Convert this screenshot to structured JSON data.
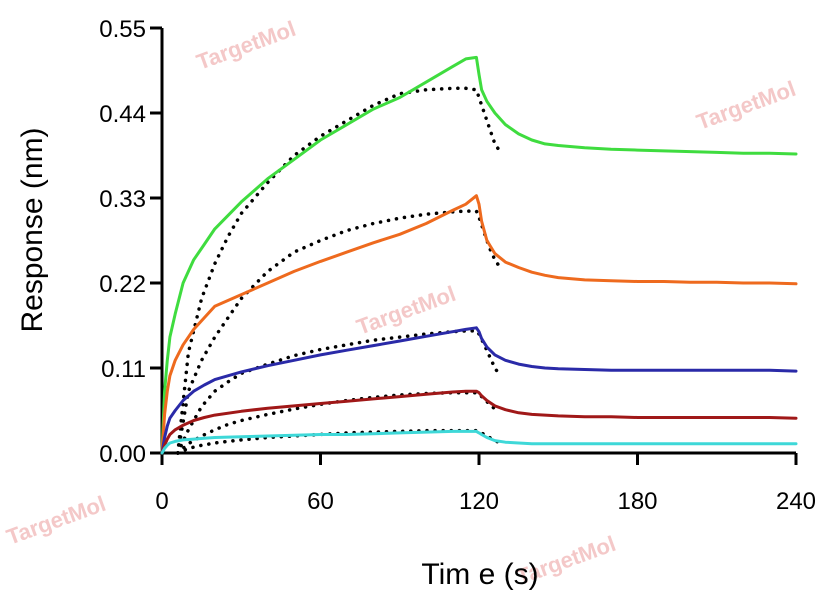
{
  "chart_data": {
    "type": "line",
    "title": "",
    "xlabel": "Tim e (s)",
    "ylabel": "Response (nm)",
    "xlim": [
      0,
      240
    ],
    "ylim": [
      0,
      0.55
    ],
    "xticks": [
      0,
      60,
      120,
      180,
      240
    ],
    "xtick_labels": [
      "0",
      "60",
      "120",
      "180",
      "240"
    ],
    "yticks": [
      0.0,
      0.11,
      0.22,
      0.33,
      0.44,
      0.55
    ],
    "ytick_labels": [
      "0.00",
      "0.11",
      "0.22",
      "0.33",
      "0.44",
      "0.55"
    ],
    "grid": false,
    "watermark_text": "TargetMol",
    "series": [
      {
        "name": "green",
        "color": "#3fdc3f",
        "x": [
          0,
          1,
          2,
          3,
          5,
          8,
          12,
          16,
          20,
          30,
          40,
          50,
          60,
          70,
          80,
          90,
          100,
          110,
          115,
          119,
          120,
          121,
          123,
          126,
          130,
          135,
          140,
          145,
          150,
          160,
          170,
          180,
          190,
          200,
          210,
          220,
          230,
          240
        ],
        "y": [
          0.0,
          0.08,
          0.12,
          0.15,
          0.18,
          0.22,
          0.25,
          0.27,
          0.29,
          0.325,
          0.355,
          0.38,
          0.405,
          0.425,
          0.445,
          0.46,
          0.48,
          0.5,
          0.51,
          0.512,
          0.49,
          0.47,
          0.455,
          0.44,
          0.425,
          0.413,
          0.405,
          0.4,
          0.398,
          0.395,
          0.393,
          0.392,
          0.391,
          0.39,
          0.389,
          0.388,
          0.388,
          0.387
        ]
      },
      {
        "name": "orange",
        "color": "#ee6a1e",
        "x": [
          0,
          1,
          2,
          3,
          5,
          8,
          12,
          16,
          20,
          30,
          40,
          50,
          60,
          70,
          80,
          90,
          100,
          110,
          115,
          119,
          120,
          121,
          123,
          126,
          130,
          135,
          140,
          145,
          150,
          160,
          170,
          180,
          190,
          200,
          210,
          220,
          230,
          240
        ],
        "y": [
          0.0,
          0.05,
          0.08,
          0.1,
          0.12,
          0.14,
          0.16,
          0.175,
          0.19,
          0.205,
          0.22,
          0.235,
          0.248,
          0.26,
          0.272,
          0.283,
          0.297,
          0.314,
          0.322,
          0.333,
          0.322,
          0.3,
          0.275,
          0.258,
          0.247,
          0.24,
          0.234,
          0.23,
          0.227,
          0.224,
          0.223,
          0.222,
          0.222,
          0.221,
          0.221,
          0.22,
          0.22,
          0.219
        ]
      },
      {
        "name": "blue",
        "color": "#2a2aa8",
        "x": [
          0,
          1,
          2,
          3,
          5,
          8,
          12,
          16,
          20,
          30,
          40,
          50,
          60,
          70,
          80,
          90,
          100,
          110,
          115,
          119,
          120,
          121,
          123,
          126,
          130,
          135,
          140,
          145,
          150,
          160,
          170,
          180,
          190,
          200,
          210,
          220,
          230,
          240
        ],
        "y": [
          0.0,
          0.02,
          0.035,
          0.045,
          0.055,
          0.068,
          0.08,
          0.088,
          0.095,
          0.105,
          0.113,
          0.12,
          0.127,
          0.133,
          0.139,
          0.145,
          0.151,
          0.157,
          0.16,
          0.162,
          0.157,
          0.148,
          0.137,
          0.127,
          0.12,
          0.115,
          0.112,
          0.11,
          0.109,
          0.108,
          0.107,
          0.107,
          0.107,
          0.107,
          0.107,
          0.107,
          0.107,
          0.106
        ]
      },
      {
        "name": "dark red",
        "color": "#a01818",
        "x": [
          0,
          1,
          2,
          3,
          5,
          8,
          12,
          16,
          20,
          30,
          40,
          50,
          60,
          70,
          80,
          90,
          100,
          110,
          115,
          119,
          120,
          121,
          123,
          126,
          130,
          135,
          140,
          145,
          150,
          160,
          170,
          180,
          190,
          200,
          210,
          220,
          230,
          240
        ],
        "y": [
          0.0,
          0.01,
          0.018,
          0.024,
          0.03,
          0.036,
          0.042,
          0.046,
          0.049,
          0.054,
          0.058,
          0.061,
          0.064,
          0.067,
          0.07,
          0.073,
          0.076,
          0.079,
          0.08,
          0.08,
          0.078,
          0.074,
          0.068,
          0.061,
          0.056,
          0.052,
          0.05,
          0.049,
          0.048,
          0.047,
          0.047,
          0.046,
          0.046,
          0.046,
          0.046,
          0.046,
          0.046,
          0.045
        ]
      },
      {
        "name": "cyan",
        "color": "#3ed8d8",
        "x": [
          0,
          1,
          2,
          3,
          5,
          8,
          12,
          16,
          20,
          30,
          40,
          50,
          60,
          70,
          80,
          90,
          100,
          110,
          115,
          119,
          120,
          121,
          123,
          126,
          130,
          135,
          140,
          145,
          150,
          160,
          170,
          180,
          190,
          200,
          210,
          220,
          230,
          240
        ],
        "y": [
          0.0,
          0.006,
          0.01,
          0.013,
          0.015,
          0.017,
          0.018,
          0.019,
          0.02,
          0.021,
          0.022,
          0.023,
          0.024,
          0.024,
          0.025,
          0.026,
          0.027,
          0.028,
          0.028,
          0.028,
          0.026,
          0.024,
          0.02,
          0.016,
          0.014,
          0.013,
          0.012,
          0.012,
          0.012,
          0.012,
          0.012,
          0.012,
          0.012,
          0.012,
          0.012,
          0.012,
          0.012,
          0.012
        ]
      }
    ],
    "fit_curves": [
      {
        "name": "fit-green",
        "x": [
          6,
          10,
          15,
          20,
          25,
          30,
          40,
          50,
          60,
          70,
          80,
          90,
          100,
          110,
          115,
          119,
          120,
          122,
          124,
          126,
          128
        ],
        "y": [
          0.0,
          0.13,
          0.2,
          0.245,
          0.28,
          0.31,
          0.35,
          0.385,
          0.41,
          0.43,
          0.45,
          0.465,
          0.47,
          0.472,
          0.472,
          0.47,
          0.46,
          0.44,
          0.42,
          0.4,
          0.39
        ]
      },
      {
        "name": "fit-orange",
        "x": [
          6,
          10,
          15,
          20,
          25,
          30,
          40,
          50,
          60,
          70,
          80,
          90,
          100,
          110,
          115,
          119,
          120,
          122,
          124,
          126,
          128
        ],
        "y": [
          0.0,
          0.08,
          0.12,
          0.15,
          0.175,
          0.2,
          0.235,
          0.26,
          0.275,
          0.288,
          0.297,
          0.304,
          0.309,
          0.312,
          0.313,
          0.313,
          0.305,
          0.285,
          0.265,
          0.25,
          0.24
        ]
      },
      {
        "name": "fit-blue",
        "x": [
          6,
          10,
          15,
          20,
          25,
          30,
          40,
          50,
          60,
          70,
          80,
          90,
          100,
          110,
          115,
          119,
          120,
          122,
          124,
          126,
          128
        ],
        "y": [
          0.0,
          0.03,
          0.06,
          0.08,
          0.092,
          0.103,
          0.115,
          0.126,
          0.134,
          0.14,
          0.146,
          0.15,
          0.154,
          0.157,
          0.158,
          0.158,
          0.154,
          0.14,
          0.125,
          0.11,
          0.1
        ]
      },
      {
        "name": "fit-darkred",
        "x": [
          6,
          10,
          15,
          20,
          25,
          30,
          40,
          50,
          60,
          70,
          80,
          90,
          100,
          110,
          115,
          119,
          120,
          122,
          124,
          126,
          128
        ],
        "y": [
          0.0,
          0.012,
          0.022,
          0.03,
          0.037,
          0.042,
          0.05,
          0.057,
          0.063,
          0.068,
          0.072,
          0.075,
          0.077,
          0.078,
          0.078,
          0.078,
          0.076,
          0.07,
          0.063,
          0.057,
          0.053
        ]
      },
      {
        "name": "fit-cyan",
        "x": [
          6,
          10,
          15,
          20,
          25,
          30,
          40,
          50,
          60,
          70,
          80,
          90,
          100,
          110,
          115,
          119,
          120,
          122,
          124,
          126,
          128
        ],
        "y": [
          0.0,
          0.006,
          0.01,
          0.013,
          0.015,
          0.017,
          0.02,
          0.022,
          0.024,
          0.026,
          0.027,
          0.028,
          0.029,
          0.029,
          0.029,
          0.029,
          0.028,
          0.024,
          0.02,
          0.016,
          0.013
        ]
      }
    ]
  }
}
